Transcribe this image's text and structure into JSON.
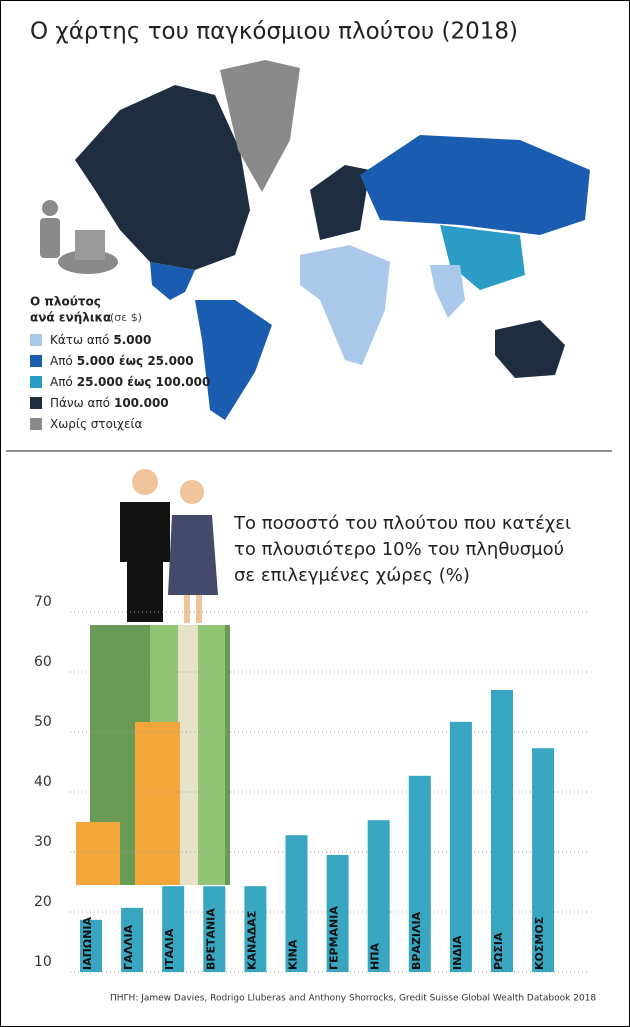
{
  "header": {
    "title": "Ο χάρτης του παγκόσμιου πλούτου (2018)"
  },
  "legend": {
    "heading": [
      "Ο πλούτος",
      "ανά ενήλικα"
    ],
    "unit": "(σε $)",
    "items": [
      {
        "text": "Κάτω από",
        "amount": "5.000",
        "color": "#a9c8ea"
      },
      {
        "text": "Από",
        "amount": "5.000 έως 25.000",
        "color": "#1a5cb0"
      },
      {
        "text": "Από",
        "amount": "25.000 έως 100.000",
        "color": "#2a9cc6"
      },
      {
        "text": "Πάνω από",
        "amount": "100.000",
        "color": "#1e2d3f"
      },
      {
        "text": "Χωρίς στοιχεία",
        "amount": "",
        "color": "#8a8a8a"
      }
    ]
  },
  "chart_data": {
    "type": "bar",
    "title": [
      "Το ποσοστό του πλούτου που κατέχει",
      "το πλουσιότερο 10% του πληθυσμού",
      "σε επιλεγμένες χώρες (%)"
    ],
    "categories": [
      "ΙΑΠΩΝΙΑ",
      "ΓΑΛΛΙΑ",
      "ΙΤΑΛΙΑ",
      "ΒΡΕΤΑΝΙΑ",
      "ΚΑΝΑΔΑΣ",
      "ΚΙΝΑ",
      "ΓΕΡΜΑΝΙΑ",
      "ΗΠΑ",
      "ΒΡΑΖΙΛΙΑ",
      "ΙΝΔΙΑ",
      "ΡΩΣΙΑ",
      "ΚΟΣΜΟΣ"
    ],
    "values": [
      18.7,
      20.7,
      24.3,
      24.3,
      24.3,
      32.8,
      29.5,
      35.3,
      42.7,
      51.7,
      57,
      47.3
    ],
    "color": "#38a6c0",
    "ylim": [
      10,
      70
    ],
    "yticks": [
      10,
      20,
      30,
      40,
      50,
      60,
      70
    ],
    "grid": true,
    "source": "ΠΗΓΗ: Jamew Davies, Rodrigo Lluberas and Anthony Shorrocks, Gredit Suisse Global Wealth Databook 2018"
  }
}
